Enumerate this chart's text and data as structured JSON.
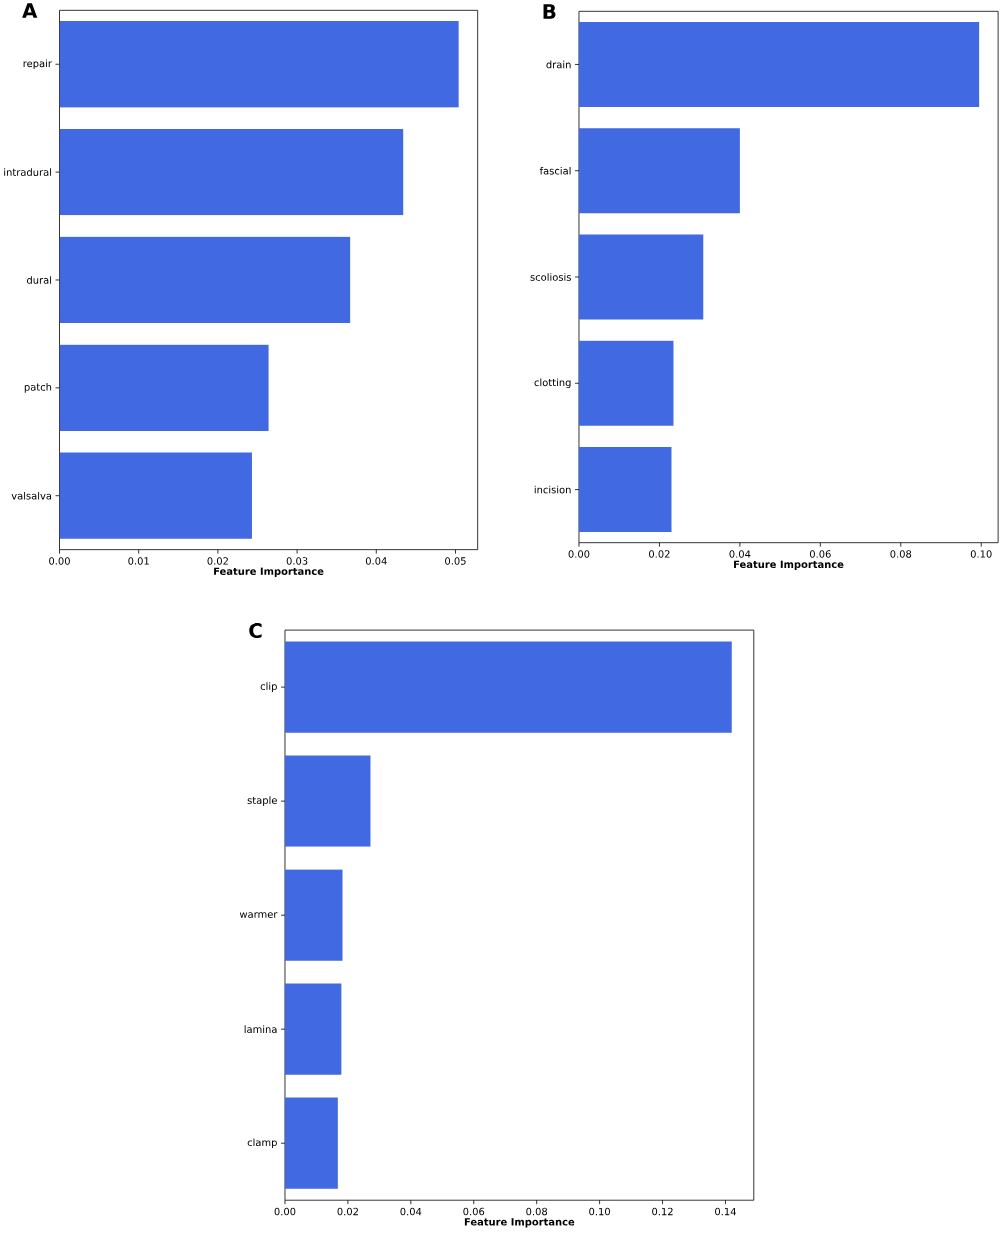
{
  "chart_data": [
    {
      "type": "bar",
      "orientation": "horizontal",
      "title": "A",
      "xlabel": "Feature Importance",
      "categories": [
        "repair",
        "intradural",
        "dural",
        "patch",
        "valsalva"
      ],
      "values": [
        0.0504,
        0.0434,
        0.0367,
        0.0264,
        0.0243
      ],
      "color": "#4169e1",
      "xlim": [
        0,
        0.0528
      ],
      "xticks": [
        {
          "value": 0,
          "label": "0.00"
        },
        {
          "value": 0.01,
          "label": "0.01"
        },
        {
          "value": 0.02,
          "label": "0.02"
        },
        {
          "value": 0.03,
          "label": "0.03"
        },
        {
          "value": 0.04,
          "label": "0.04"
        },
        {
          "value": 0.05,
          "label": "0.05"
        }
      ]
    },
    {
      "type": "bar",
      "orientation": "horizontal",
      "title": "B",
      "xlabel": "Feature Importance",
      "categories": [
        "drain",
        "fascial",
        "scoliosis",
        "clotting",
        "incision"
      ],
      "values": [
        0.0995,
        0.04,
        0.0309,
        0.0235,
        0.023
      ],
      "color": "#4169e1",
      "xlim": [
        0,
        0.1042
      ],
      "xticks": [
        {
          "value": 0,
          "label": "0.00"
        },
        {
          "value": 0.02,
          "label": "0.02"
        },
        {
          "value": 0.04,
          "label": "0.04"
        },
        {
          "value": 0.06,
          "label": "0.06"
        },
        {
          "value": 0.08,
          "label": "0.08"
        },
        {
          "value": 0.1,
          "label": "0.10"
        }
      ]
    },
    {
      "type": "bar",
      "orientation": "horizontal",
      "title": "C",
      "xlabel": "Feature Importance",
      "categories": [
        "clip",
        "staple",
        "warmer",
        "lamina",
        "clamp"
      ],
      "values": [
        0.142,
        0.0272,
        0.0183,
        0.018,
        0.0168
      ],
      "color": "#4169e1",
      "xlim": [
        0,
        0.149
      ],
      "xticks": [
        {
          "value": 0,
          "label": "0.00"
        },
        {
          "value": 0.02,
          "label": "0.02"
        },
        {
          "value": 0.04,
          "label": "0.04"
        },
        {
          "value": 0.06,
          "label": "0.06"
        },
        {
          "value": 0.08,
          "label": "0.08"
        },
        {
          "value": 0.1,
          "label": "0.10"
        },
        {
          "value": 0.12,
          "label": "0.12"
        },
        {
          "value": 0.14,
          "label": "0.14"
        }
      ]
    }
  ]
}
